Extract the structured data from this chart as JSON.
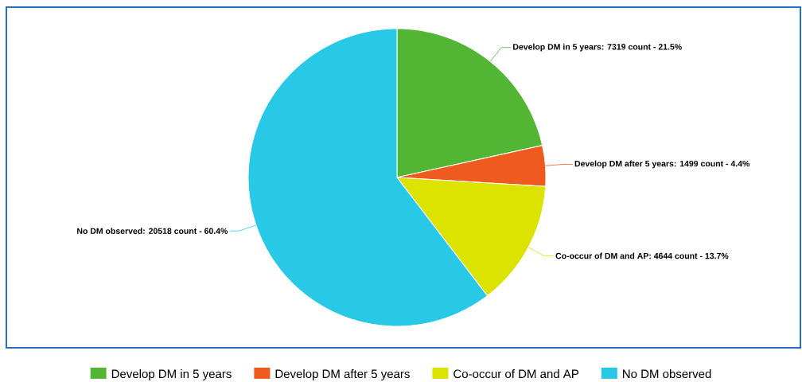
{
  "chart_data": {
    "type": "pie",
    "categories": [
      "Develop DM in 5 years",
      "Develop DM after 5 years",
      "Co-occur of DM and AP",
      "No DM observed"
    ],
    "values": [
      7319,
      1499,
      4644,
      20518
    ],
    "value_labels": [
      "Develop DM in 5 years: 7319 count - 21.5%",
      "Develop DM after 5 years: 1499 count - 4.4%",
      "Co-occur of DM and AP: 4644 count - 13.7%",
      "No DM observed: 20518 count - 60.4%"
    ],
    "colors": [
      "#52b634",
      "#ef5a1e",
      "#dce300",
      "#27c9e6"
    ],
    "legend": "bottom"
  }
}
